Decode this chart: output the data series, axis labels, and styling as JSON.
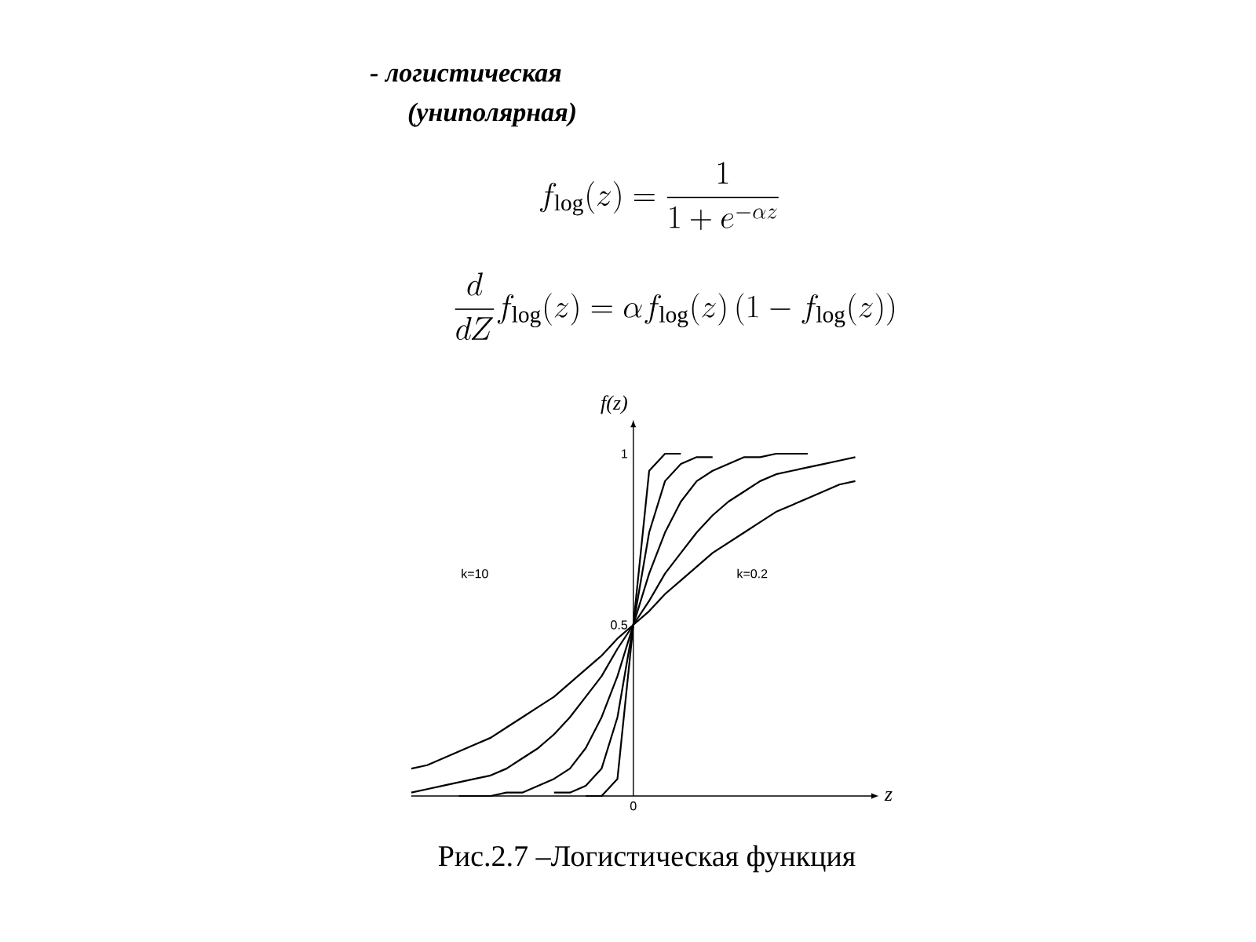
{
  "chart_data": {
    "type": "line",
    "title": "- логистическая",
    "subtitle": "(униполярная)",
    "xlabel": "z",
    "ylabel": "f(z)",
    "categories": [
      null,
      null,
      null,
      null,
      null,
      null,
      null,
      null,
      null,
      null,
      null,
      null,
      null,
      null,
      "0",
      null,
      null,
      null,
      null,
      null,
      null,
      null,
      null,
      null,
      null,
      null,
      null,
      null,
      null
    ],
    "ylim": [
      0,
      1.1
    ],
    "yticks": [
      0.5,
      1
    ],
    "marker": "none",
    "series": [
      {
        "color": "#000000",
        "values": [
          0.08,
          0.09,
          0.11,
          0.13,
          0.15,
          0.17,
          0.2,
          0.23,
          0.26,
          0.29,
          0.33,
          0.37,
          0.41,
          0.46,
          0.5,
          0.54,
          0.59,
          0.63,
          0.67,
          0.71,
          0.74,
          0.77,
          0.8,
          0.83,
          0.85,
          0.87,
          0.89,
          0.91,
          0.92
        ]
      },
      {
        "color": "#000000",
        "values": [
          0.01,
          0.02,
          0.03,
          0.04,
          0.05,
          0.06,
          0.08,
          0.11,
          0.14,
          0.18,
          0.23,
          0.29,
          0.35,
          0.43,
          0.5,
          0.57,
          0.65,
          0.71,
          0.77,
          0.82,
          0.86,
          0.89,
          0.92,
          0.94,
          0.95,
          0.96,
          0.97,
          0.98,
          0.99
        ]
      },
      {
        "color": "#000000",
        "values": [
          null,
          null,
          null,
          0,
          0,
          0,
          0.01,
          0.01,
          0.03,
          0.05,
          0.08,
          0.14,
          0.23,
          0.35,
          0.5,
          0.65,
          0.77,
          0.86,
          0.92,
          0.95,
          0.97,
          0.99,
          0.99,
          1,
          1,
          1,
          null,
          null,
          null
        ]
      },
      {
        "color": "#000000",
        "values": [
          null,
          null,
          null,
          null,
          null,
          null,
          null,
          null,
          null,
          0.01,
          0.01,
          0.03,
          0.08,
          0.23,
          0.5,
          0.77,
          0.92,
          0.97,
          0.99,
          0.99,
          null,
          null,
          null,
          null,
          null,
          null,
          null,
          null,
          null
        ]
      },
      {
        "color": "#000000",
        "values": [
          null,
          null,
          null,
          null,
          null,
          null,
          null,
          null,
          null,
          null,
          null,
          0,
          0,
          0.05,
          0.5,
          0.95,
          1,
          1,
          null,
          null,
          null,
          null,
          null,
          null,
          null,
          null,
          null,
          null,
          null
        ]
      }
    ],
    "annotations": [
      "f_{\\log}(z)=\\frac{1}{1+e^{-\\alpha z}}",
      "\\frac{d}{dZ}f_{\\log}(z)=\\alpha f_{\\log}(z)\\left(1-f_{\\log}(z)\\right)",
      "k=10",
      "k=0.2",
      "Рис.2.7 –Логистическая функция"
    ]
  }
}
